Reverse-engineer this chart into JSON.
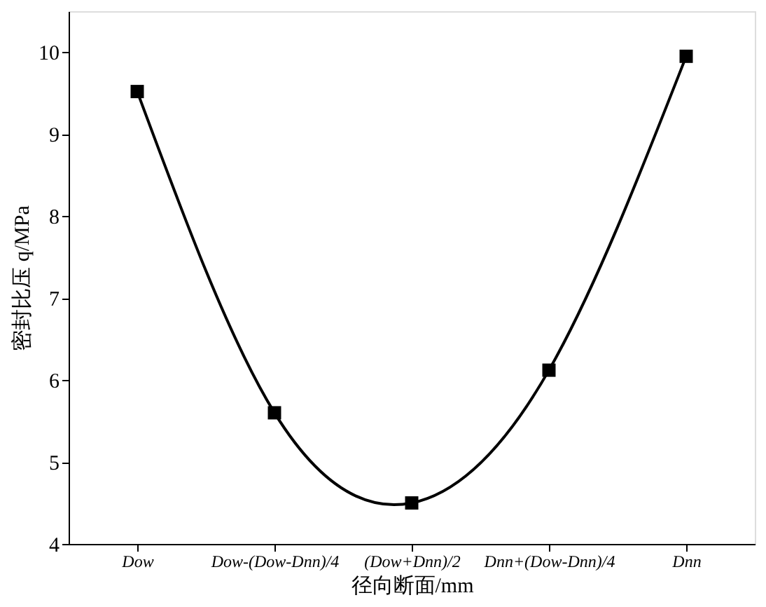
{
  "chart_data": {
    "type": "line",
    "xlabel": "径向断面/mm",
    "ylabel": "密封比压 q/MPa",
    "categories": [
      "Dow",
      "Dow-(Dow-Dnn)/4",
      "(Dow+Dnn)/2",
      "Dnn+(Dow-Dnn)/4",
      "Dnn"
    ],
    "series": [
      {
        "color": "#000000",
        "values": [
          9.52,
          5.6,
          4.5,
          6.12,
          9.95
        ]
      }
    ],
    "ylim": [
      4,
      10.5
    ],
    "yticks": [
      4,
      5,
      6,
      7,
      8,
      9,
      10
    ],
    "grid": false,
    "marker": "square",
    "line_style": "solid"
  }
}
